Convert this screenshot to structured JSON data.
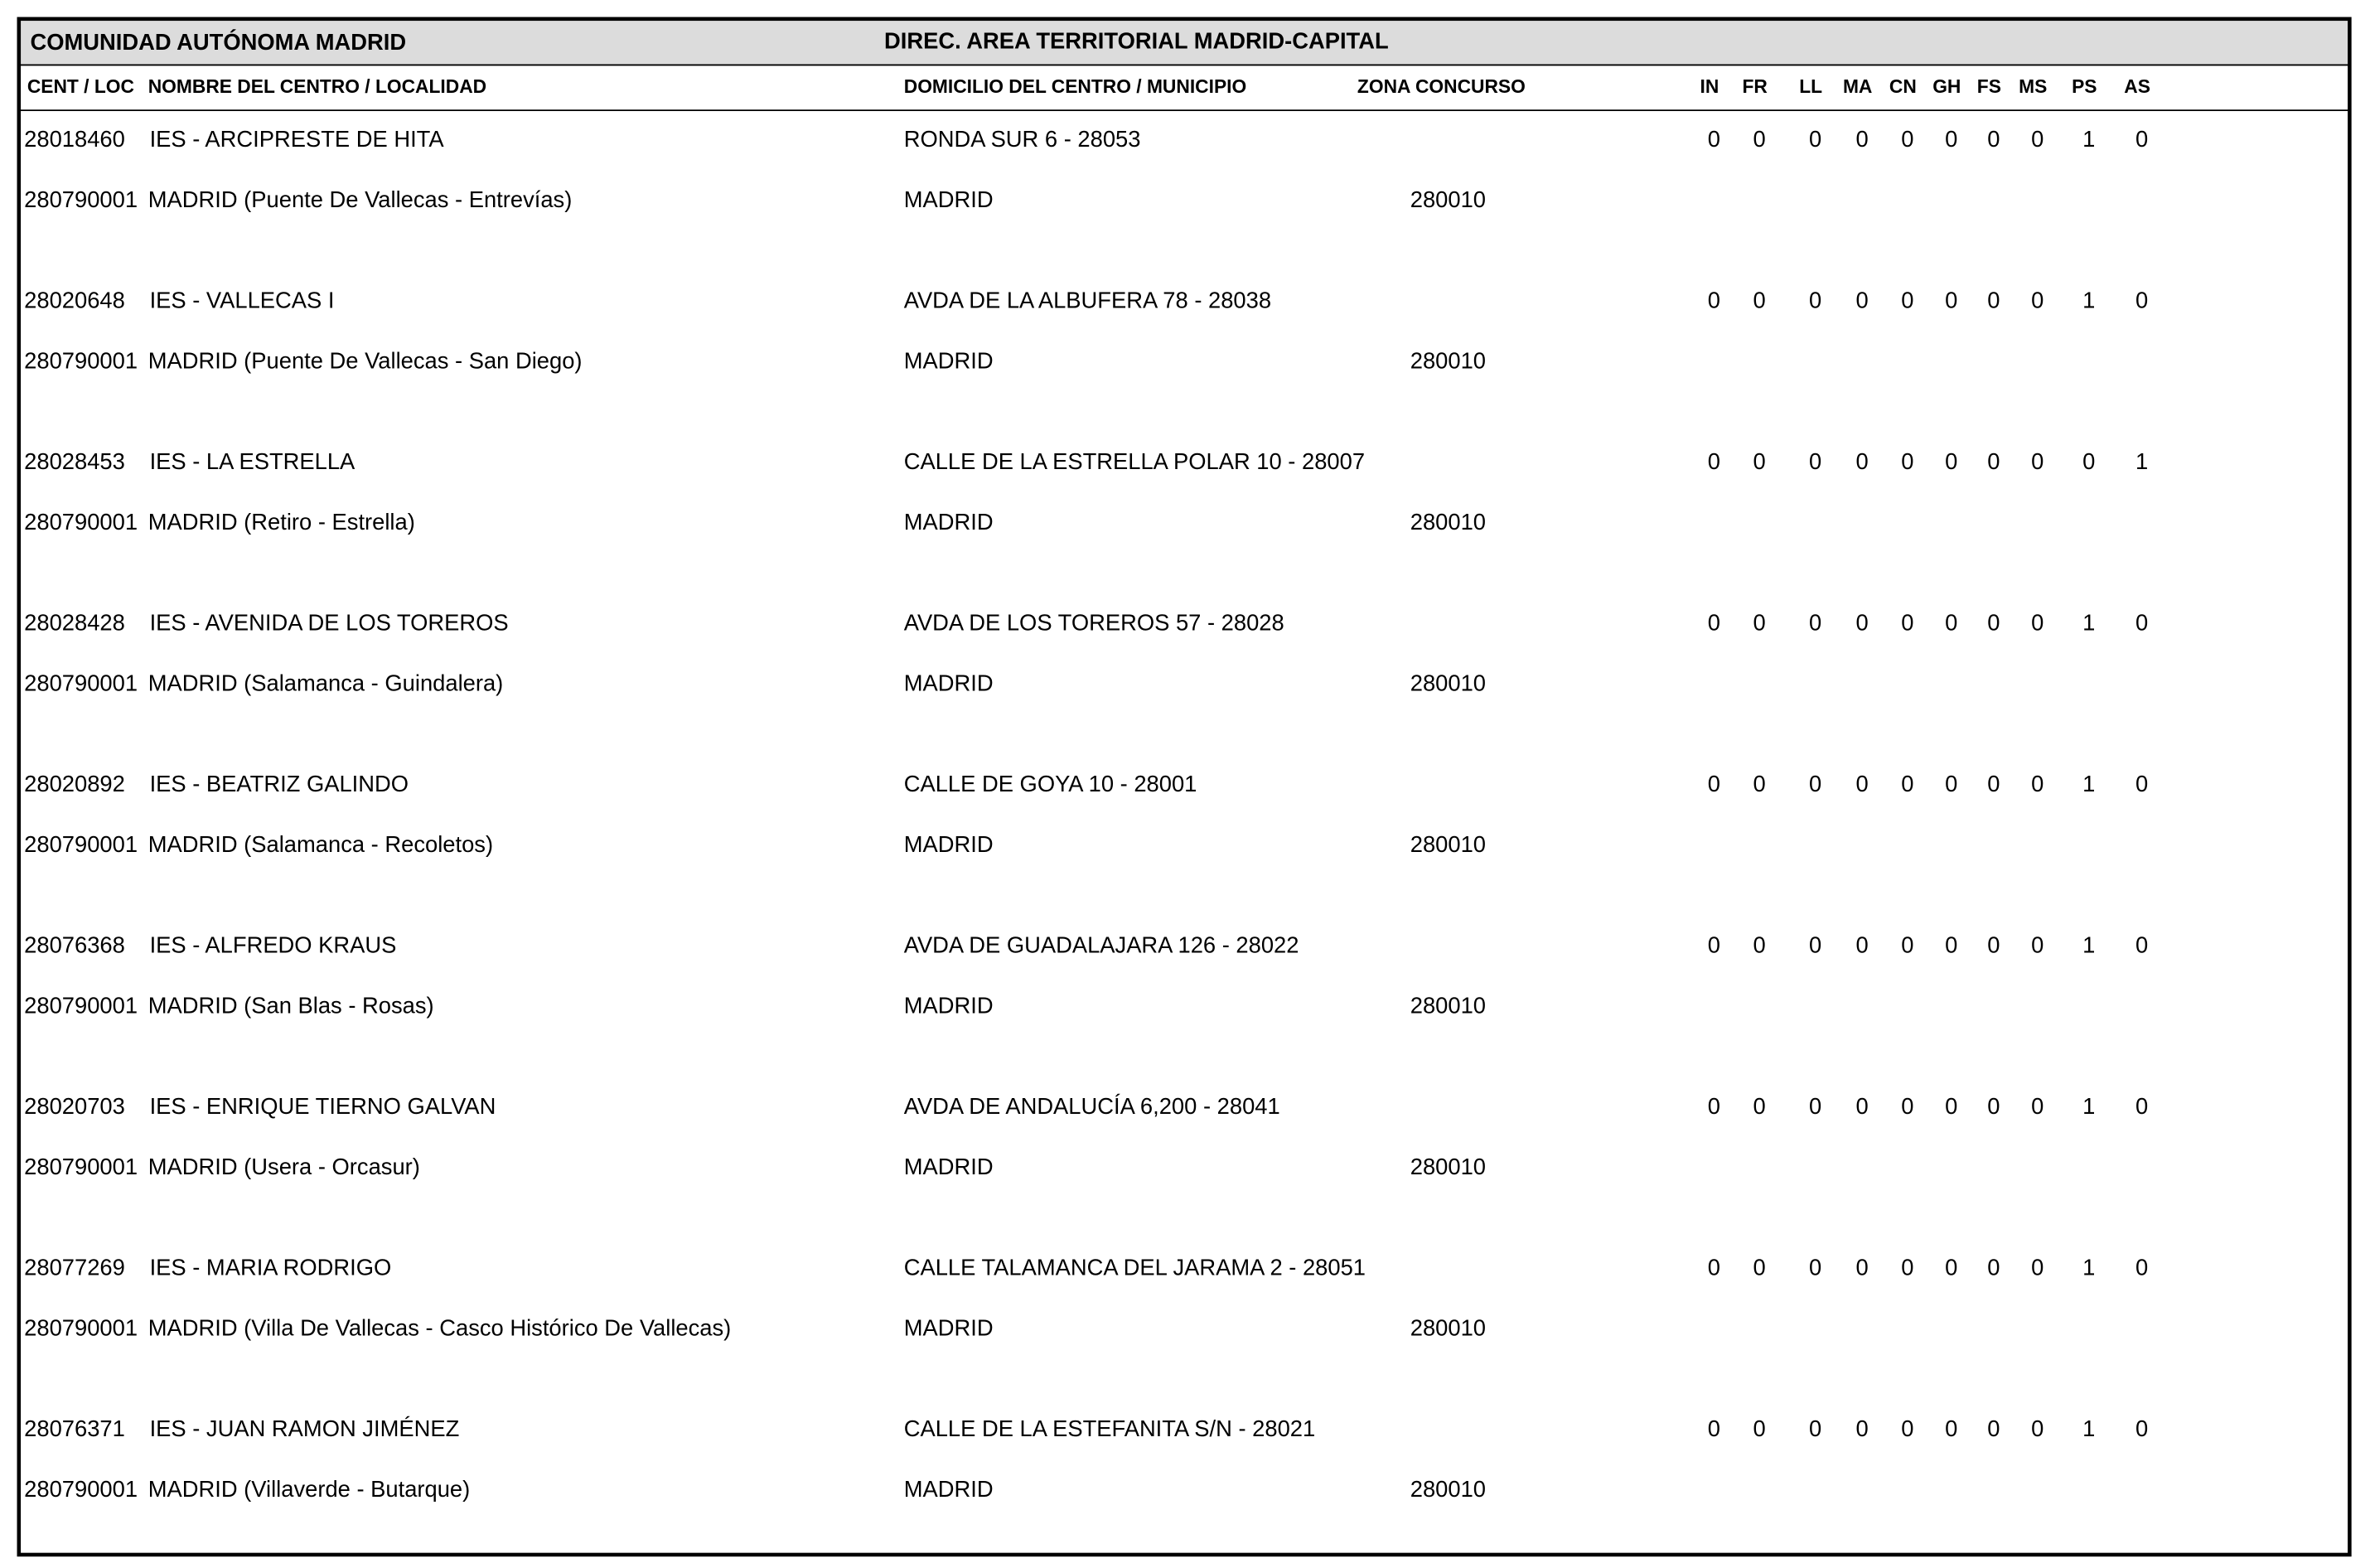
{
  "header": {
    "region": "COMUNIDAD AUTÓNOMA MADRID",
    "direction": "DIREC.  AREA TERRITORIAL MADRID-CAPITAL"
  },
  "columns": [
    "CENT / LOC",
    "NOMBRE DEL CENTRO / LOCALIDAD",
    "DOMICILIO DEL CENTRO / MUNICIPIO",
    "ZONA CONCURSO"
  ],
  "count_columns": [
    "IN",
    "FR",
    "LL",
    "MA",
    "CN",
    "GH",
    "FS",
    "MS",
    "PS",
    "AS"
  ],
  "rows": [
    {
      "code": "28018460",
      "name": "IES - ARCIPRESTE DE HITA",
      "address": "RONDA SUR 6 - 28053",
      "counts": [
        0,
        0,
        0,
        0,
        0,
        0,
        0,
        0,
        1,
        0
      ],
      "locality_code": "280790001",
      "locality": "MADRID (Puente De Vallecas - Entrevías)",
      "municipality": "MADRID",
      "zone": "280010"
    },
    {
      "code": "28020648",
      "name": "IES - VALLECAS I",
      "address": "AVDA DE LA ALBUFERA 78 - 28038",
      "counts": [
        0,
        0,
        0,
        0,
        0,
        0,
        0,
        0,
        1,
        0
      ],
      "locality_code": "280790001",
      "locality": "MADRID (Puente De Vallecas - San Diego)",
      "municipality": "MADRID",
      "zone": "280010"
    },
    {
      "code": "28028453",
      "name": "IES - LA ESTRELLA",
      "address": "CALLE DE LA ESTRELLA POLAR 10 - 28007",
      "counts": [
        0,
        0,
        0,
        0,
        0,
        0,
        0,
        0,
        0,
        1
      ],
      "locality_code": "280790001",
      "locality": "MADRID (Retiro - Estrella)",
      "municipality": "MADRID",
      "zone": "280010"
    },
    {
      "code": "28028428",
      "name": "IES - AVENIDA DE LOS TOREROS",
      "address": "AVDA DE LOS TOREROS 57 - 28028",
      "counts": [
        0,
        0,
        0,
        0,
        0,
        0,
        0,
        0,
        1,
        0
      ],
      "locality_code": "280790001",
      "locality": "MADRID (Salamanca - Guindalera)",
      "municipality": "MADRID",
      "zone": "280010"
    },
    {
      "code": "28020892",
      "name": "IES - BEATRIZ GALINDO",
      "address": "CALLE DE GOYA 10 - 28001",
      "counts": [
        0,
        0,
        0,
        0,
        0,
        0,
        0,
        0,
        1,
        0
      ],
      "locality_code": "280790001",
      "locality": "MADRID (Salamanca - Recoletos)",
      "municipality": "MADRID",
      "zone": "280010"
    },
    {
      "code": "28076368",
      "name": "IES - ALFREDO KRAUS",
      "address": "AVDA DE GUADALAJARA 126 - 28022",
      "counts": [
        0,
        0,
        0,
        0,
        0,
        0,
        0,
        0,
        1,
        0
      ],
      "locality_code": "280790001",
      "locality": "MADRID (San Blas - Rosas)",
      "municipality": "MADRID",
      "zone": "280010"
    },
    {
      "code": "28020703",
      "name": "IES - ENRIQUE TIERNO GALVAN",
      "address": "AVDA DE ANDALUCÍA 6,200 - 28041",
      "counts": [
        0,
        0,
        0,
        0,
        0,
        0,
        0,
        0,
        1,
        0
      ],
      "locality_code": "280790001",
      "locality": "MADRID (Usera - Orcasur)",
      "municipality": "MADRID",
      "zone": "280010"
    },
    {
      "code": "28077269",
      "name": "IES - MARIA RODRIGO",
      "address": "CALLE TALAMANCA DEL JARAMA 2 - 28051",
      "counts": [
        0,
        0,
        0,
        0,
        0,
        0,
        0,
        0,
        1,
        0
      ],
      "locality_code": "280790001",
      "locality": "MADRID (Villa De Vallecas - Casco Histórico De Vallecas)",
      "municipality": "MADRID",
      "zone": "280010"
    },
    {
      "code": "28076371",
      "name": "IES - JUAN RAMON JIMÉNEZ",
      "address": "CALLE DE LA ESTEFANITA S/N - 28021",
      "counts": [
        0,
        0,
        0,
        0,
        0,
        0,
        0,
        0,
        1,
        0
      ],
      "locality_code": "280790001",
      "locality": "MADRID (Villaverde - Butarque)",
      "municipality": "MADRID",
      "zone": "280010"
    }
  ]
}
